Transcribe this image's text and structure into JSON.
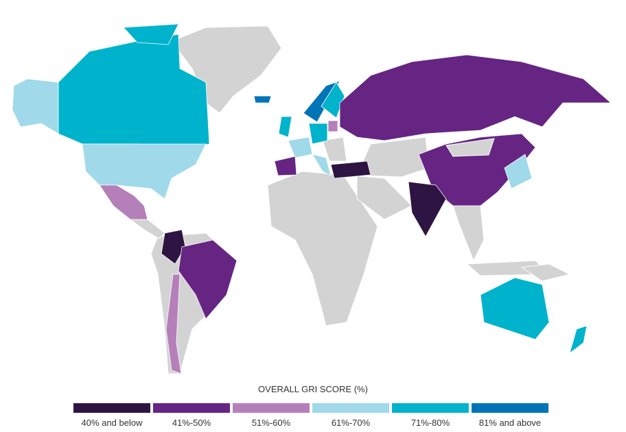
{
  "legend": {
    "title": "OVERALL GRI SCORE (%)",
    "items": [
      {
        "label": "40% and below",
        "color": "#2e1442"
      },
      {
        "label": "41%-50%",
        "color": "#662483"
      },
      {
        "label": "51%-60%",
        "color": "#b57fba"
      },
      {
        "label": "61%-70%",
        "color": "#9fd9ea"
      },
      {
        "label": "71%-80%",
        "color": "#00b3cc"
      },
      {
        "label": "81% and above",
        "color": "#0074b7"
      }
    ]
  }
}
